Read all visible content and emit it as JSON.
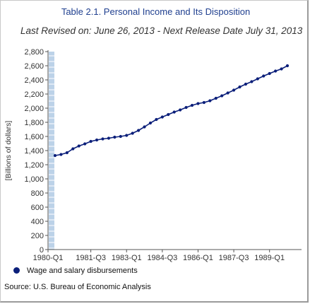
{
  "header": {
    "title": "Table 2.1. Personal Income and Its Disposition",
    "subtitle": "Last Revised on: June 26, 2013 - Next Release Date July 31, 2013"
  },
  "legend": {
    "label": "Wage and salary disbursements"
  },
  "source": "Source: U.S. Bureau of Economic Analysis",
  "colors": {
    "series": "#0b1f7a",
    "axis_band": "#bcd2e8",
    "title": "#1f3f8f"
  },
  "chart_data": {
    "type": "line",
    "title": "Table 2.1. Personal Income and Its Disposition",
    "subtitle": "Last Revised on: June 26, 2013 - Next Release Date July 31, 2013",
    "ylabel": "[Billions of dollars]",
    "xlabel": "",
    "ylim": [
      0,
      2800
    ],
    "ytick_step": 200,
    "ytick_labels": [
      "0",
      "200",
      "400",
      "600",
      "800",
      "1,000",
      "1,200",
      "1,400",
      "1,600",
      "1,800",
      "2,000",
      "2,200",
      "2,400",
      "2,600",
      "2,800"
    ],
    "xtick_labels": [
      "1980-Q1",
      "1981-Q3",
      "1983-Q1",
      "1984-Q3",
      "1986-Q1",
      "1987-Q3",
      "1989-Q1"
    ],
    "x": [
      "1980-Q1",
      "1980-Q2",
      "1980-Q3",
      "1980-Q4",
      "1981-Q1",
      "1981-Q2",
      "1981-Q3",
      "1981-Q4",
      "1982-Q1",
      "1982-Q2",
      "1982-Q3",
      "1982-Q4",
      "1983-Q1",
      "1983-Q2",
      "1983-Q3",
      "1983-Q4",
      "1984-Q1",
      "1984-Q2",
      "1984-Q3",
      "1984-Q4",
      "1985-Q1",
      "1985-Q2",
      "1985-Q3",
      "1985-Q4",
      "1986-Q1",
      "1986-Q2",
      "1986-Q3",
      "1986-Q4",
      "1987-Q1",
      "1987-Q2",
      "1987-Q3",
      "1987-Q4",
      "1988-Q1",
      "1988-Q2",
      "1988-Q3",
      "1988-Q4",
      "1989-Q1",
      "1989-Q2",
      "1989-Q3",
      "1989-Q4"
    ],
    "series": [
      {
        "name": "Wage and salary disbursements",
        "values": [
          1330,
          1345,
          1370,
          1425,
          1465,
          1495,
          1530,
          1550,
          1565,
          1575,
          1590,
          1600,
          1615,
          1645,
          1685,
          1735,
          1790,
          1840,
          1875,
          1910,
          1945,
          1975,
          2010,
          2040,
          2065,
          2080,
          2105,
          2140,
          2175,
          2215,
          2255,
          2300,
          2340,
          2375,
          2415,
          2455,
          2490,
          2525,
          2555,
          2600
        ]
      }
    ],
    "grid": false,
    "legend_position": "bottom-left"
  }
}
